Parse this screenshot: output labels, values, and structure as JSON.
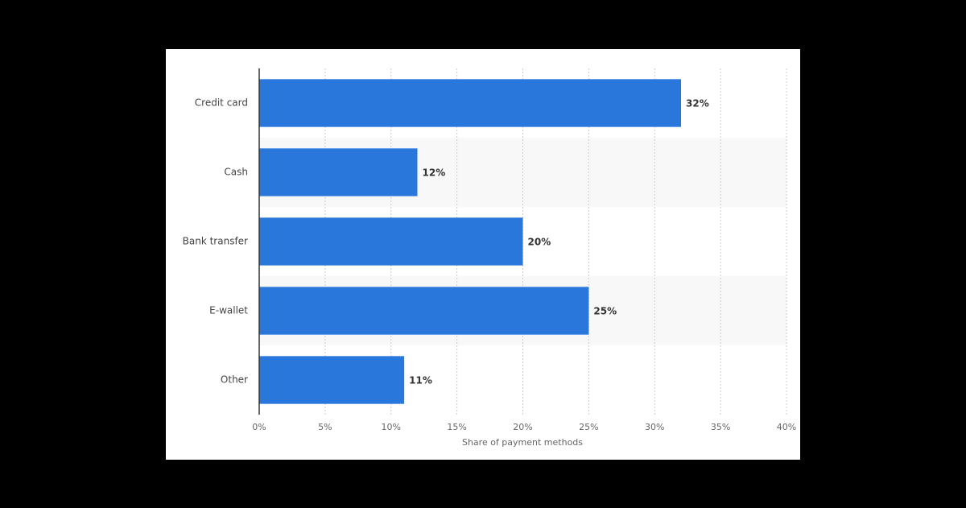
{
  "chart_data": {
    "type": "bar",
    "orientation": "horizontal",
    "x_label": "Share of payment methods",
    "categories": [
      "Credit card",
      "Cash",
      "Bank transfer",
      "E-wallet",
      "Other"
    ],
    "values": [
      32,
      12,
      20,
      25,
      11
    ],
    "value_labels": [
      "32%",
      "12%",
      "20%",
      "25%",
      "11%"
    ],
    "color": "#2a77dc",
    "xlim": [
      0,
      40
    ],
    "xticks": [
      {
        "value": 0,
        "label": "0%"
      },
      {
        "value": 5,
        "label": "5%"
      },
      {
        "value": 10,
        "label": "10%"
      },
      {
        "value": 15,
        "label": "15%"
      },
      {
        "value": 20,
        "label": "20%"
      },
      {
        "value": 25,
        "label": "25%"
      },
      {
        "value": 30,
        "label": "30%"
      },
      {
        "value": 35,
        "label": "35%"
      },
      {
        "value": 40,
        "label": "40%"
      }
    ],
    "grid": true
  }
}
